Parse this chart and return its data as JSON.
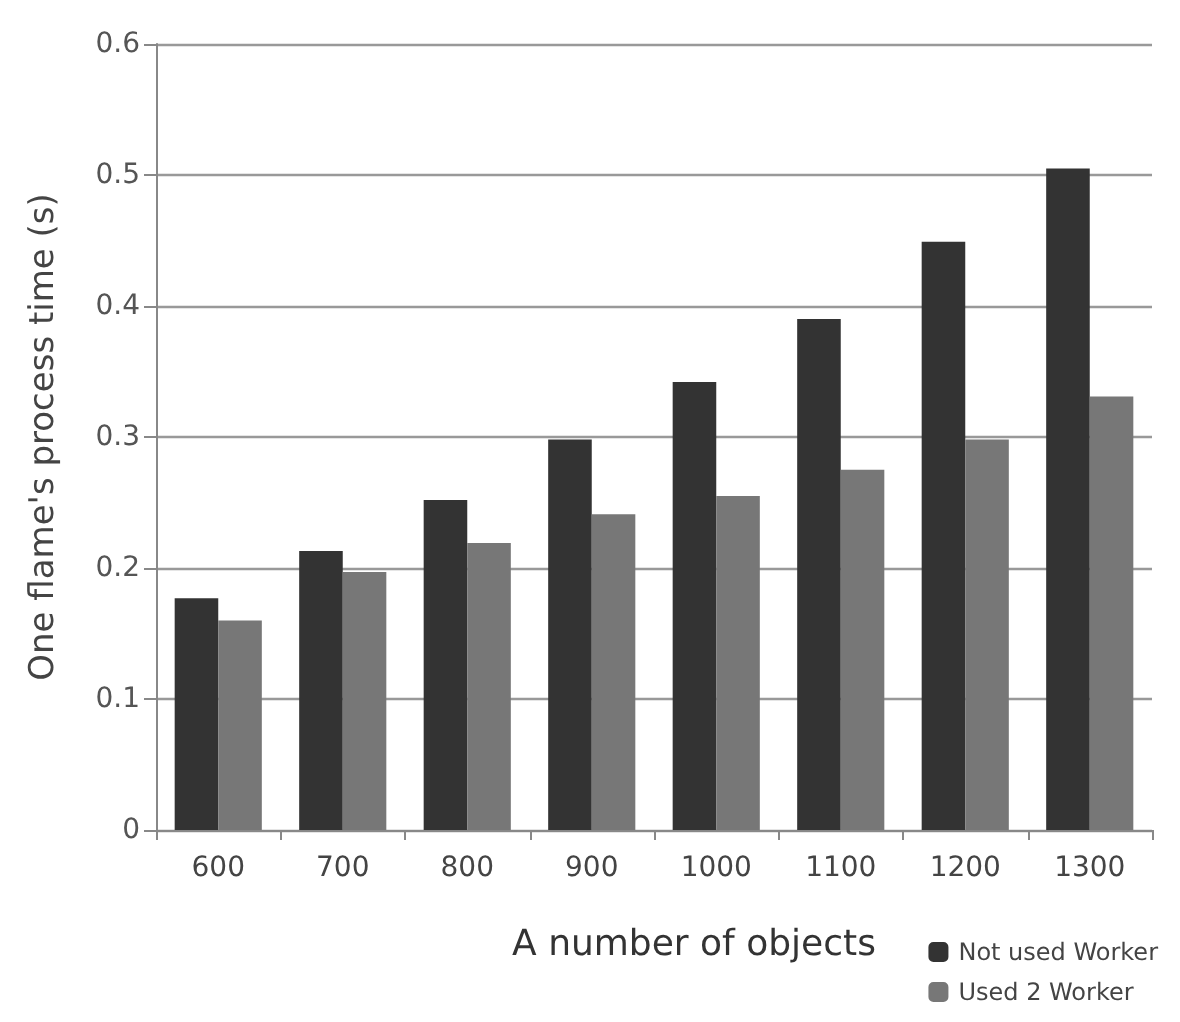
{
  "chart_data": {
    "type": "bar",
    "xlabel": "A number of objects",
    "ylabel": "One flame's process time (s)",
    "categories": [
      "600",
      "700",
      "800",
      "900",
      "1000",
      "1100",
      "1200",
      "1300"
    ],
    "series": [
      {
        "name": "Not used Worker",
        "color": "#333333",
        "values": [
          0.177,
          0.213,
          0.252,
          0.298,
          0.342,
          0.39,
          0.449,
          0.505
        ]
      },
      {
        "name": "Used 2 Worker",
        "color": "#777777",
        "values": [
          0.16,
          0.197,
          0.219,
          0.241,
          0.255,
          0.275,
          0.298,
          0.331
        ]
      }
    ],
    "ylim": [
      0,
      0.6
    ],
    "yticks": [
      0,
      0.1,
      0.2,
      0.3,
      0.4,
      0.5,
      0.6
    ],
    "grid": "y",
    "legend": "bottom right"
  }
}
